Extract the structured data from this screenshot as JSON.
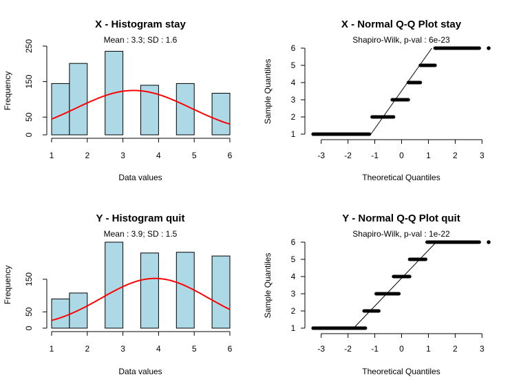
{
  "chart_data": [
    {
      "type": "bar",
      "title": "X - Histogram stay",
      "subtitle": "Mean : 3.3; SD : 1.6",
      "xlabel": "Data values",
      "ylabel": "Frequency",
      "bins": [
        [
          1.0,
          1.5
        ],
        [
          1.5,
          2.0
        ],
        [
          2.5,
          3.0
        ],
        [
          3.5,
          4.0
        ],
        [
          4.5,
          5.0
        ],
        [
          5.5,
          6.0
        ]
      ],
      "values": [
        148,
        206,
        241,
        143,
        148,
        120
      ],
      "xlim": [
        1,
        6
      ],
      "ylim": [
        0,
        250
      ],
      "xticks": [
        "1",
        "2",
        "3",
        "4",
        "5",
        "6"
      ],
      "yticks": [
        "0",
        "50",
        "150",
        "250"
      ],
      "series": [
        {
          "name": "normal density",
          "color": "#ff0000",
          "mean": 3.3,
          "sd": 1.6,
          "peak": 128
        }
      ],
      "bar_color": "#add8e6"
    },
    {
      "type": "scatter",
      "title": "X - Normal Q-Q Plot stay",
      "subtitle": "Shapiro-Wilk, p-val : 6e-23",
      "xlabel": "Theoretical Quantiles",
      "ylabel": "Sample Quantiles",
      "xlim": [
        -3.3,
        3.3
      ],
      "ylim": [
        1,
        6
      ],
      "xticks": [
        "-3",
        "-2",
        "-1",
        "0",
        "1",
        "2",
        "3"
      ],
      "yticks": [
        "1",
        "2",
        "3",
        "4",
        "5",
        "6"
      ],
      "segments": [
        [
          -3.3,
          -1.2,
          1
        ],
        [
          -1.1,
          -0.3,
          2
        ],
        [
          -0.35,
          0.25,
          3
        ],
        [
          0.25,
          0.7,
          4
        ],
        [
          0.7,
          1.25,
          5
        ],
        [
          1.25,
          2.9,
          6
        ]
      ],
      "outliers": [
        [
          3.3,
          6
        ]
      ],
      "qqline": [
        [
          -1.6,
          0.0
        ],
        [
          1.4,
          6.6
        ]
      ]
    },
    {
      "type": "bar",
      "title": "Y - Histogram quit",
      "subtitle": "Mean : 3.9; SD : 1.5",
      "xlabel": "Data values",
      "ylabel": "Frequency",
      "bins": [
        [
          1.0,
          1.5
        ],
        [
          1.5,
          2.0
        ],
        [
          2.5,
          3.0
        ],
        [
          3.5,
          4.0
        ],
        [
          4.5,
          5.0
        ],
        [
          5.5,
          6.0
        ]
      ],
      "values": [
        78,
        94,
        230,
        201,
        203,
        193
      ],
      "xlim": [
        1,
        6
      ],
      "ylim": [
        0,
        230
      ],
      "xticks": [
        "1",
        "2",
        "3",
        "4",
        "5",
        "6"
      ],
      "yticks": [
        "0",
        "50",
        "150"
      ],
      "series": [
        {
          "name": "normal density",
          "color": "#ff0000",
          "mean": 3.9,
          "sd": 1.5,
          "peak": 133
        }
      ],
      "bar_color": "#add8e6"
    },
    {
      "type": "scatter",
      "title": "Y - Normal Q-Q Plot quit",
      "subtitle": "Shapiro-Wilk, p-val : 1e-22",
      "xlabel": "Theoretical Quantiles",
      "ylabel": "Sample Quantiles",
      "xlim": [
        -3.3,
        3.3
      ],
      "ylim": [
        1,
        6
      ],
      "xticks": [
        "-3",
        "-2",
        "-1",
        "0",
        "1",
        "2",
        "3"
      ],
      "yticks": [
        "1",
        "2",
        "3",
        "4",
        "5",
        "6"
      ],
      "segments": [
        [
          -3.3,
          -1.35,
          1
        ],
        [
          -1.4,
          -0.85,
          2
        ],
        [
          -0.95,
          -0.1,
          3
        ],
        [
          -0.3,
          0.3,
          4
        ],
        [
          0.3,
          0.9,
          5
        ],
        [
          0.95,
          2.9,
          6
        ]
      ],
      "outliers": [
        [
          3.3,
          6
        ]
      ],
      "qqline": [
        [
          -2.1,
          0.5
        ],
        [
          1.6,
          6.5
        ]
      ]
    }
  ]
}
